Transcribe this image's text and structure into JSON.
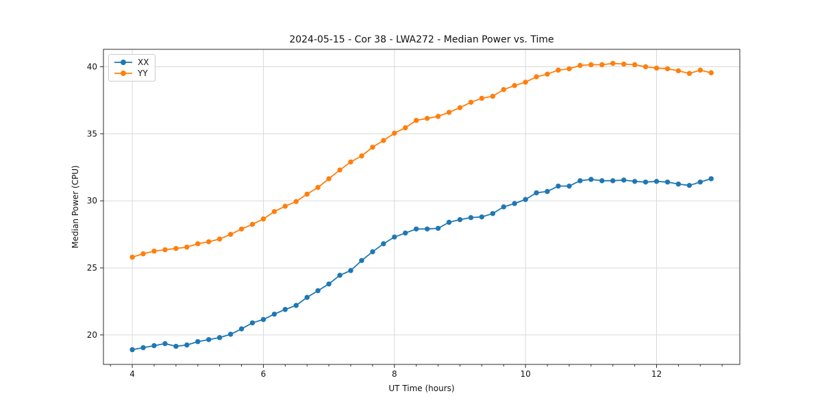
{
  "figure": {
    "background": "#ffffff"
  },
  "chart_data": {
    "type": "line",
    "title": "2024-05-15 - Cor 38 - LWA272 - Median Power vs. Time",
    "xlabel": "UT Time (hours)",
    "ylabel": "Median Power (CPU)",
    "xlim": [
      3.56,
      13.27
    ],
    "ylim": [
      17.8,
      41.3
    ],
    "x_ticks": [
      4,
      6,
      8,
      10,
      12
    ],
    "y_ticks": [
      20,
      25,
      30,
      35,
      40
    ],
    "x_minor_tick_step": 0.3333,
    "grid": true,
    "grid_color": "#d9d9d9",
    "legend_position": "upper left",
    "marker": "o",
    "x": [
      4.0,
      4.167,
      4.333,
      4.5,
      4.667,
      4.833,
      5.0,
      5.167,
      5.333,
      5.5,
      5.667,
      5.833,
      6.0,
      6.167,
      6.333,
      6.5,
      6.667,
      6.833,
      7.0,
      7.167,
      7.333,
      7.5,
      7.667,
      7.833,
      8.0,
      8.167,
      8.333,
      8.5,
      8.667,
      8.833,
      9.0,
      9.167,
      9.333,
      9.5,
      9.667,
      9.833,
      10.0,
      10.167,
      10.333,
      10.5,
      10.667,
      10.833,
      11.0,
      11.167,
      11.333,
      11.5,
      11.667,
      11.833,
      12.0,
      12.167,
      12.333,
      12.5,
      12.667,
      12.833
    ],
    "series": [
      {
        "name": "XX",
        "color": "#1f77b4",
        "values": [
          18.9,
          19.05,
          19.2,
          19.35,
          19.15,
          19.25,
          19.5,
          19.65,
          19.8,
          20.05,
          20.45,
          20.9,
          21.15,
          21.55,
          21.9,
          22.2,
          22.8,
          23.3,
          23.8,
          24.45,
          24.8,
          25.55,
          26.2,
          26.8,
          27.3,
          27.6,
          27.9,
          27.9,
          27.95,
          28.4,
          28.6,
          28.75,
          28.8,
          29.05,
          29.55,
          29.8,
          30.1,
          30.6,
          30.7,
          31.1,
          31.1,
          31.5,
          31.6,
          31.5,
          31.5,
          31.55,
          31.45,
          31.4,
          31.45,
          31.4,
          31.25,
          31.15,
          31.4,
          31.65
        ]
      },
      {
        "name": "YY",
        "color": "#ff7f0e",
        "values": [
          25.8,
          26.05,
          26.25,
          26.35,
          26.45,
          26.55,
          26.8,
          26.95,
          27.15,
          27.5,
          27.9,
          28.25,
          28.65,
          29.2,
          29.6,
          29.95,
          30.5,
          31.0,
          31.65,
          32.3,
          32.9,
          33.35,
          34.0,
          34.5,
          35.05,
          35.45,
          36.0,
          36.15,
          36.3,
          36.6,
          36.95,
          37.35,
          37.65,
          37.8,
          38.3,
          38.6,
          38.85,
          39.25,
          39.45,
          39.75,
          39.85,
          40.1,
          40.15,
          40.15,
          40.25,
          40.2,
          40.15,
          40.0,
          39.9,
          39.85,
          39.7,
          39.5,
          39.75,
          39.55
        ]
      }
    ]
  }
}
